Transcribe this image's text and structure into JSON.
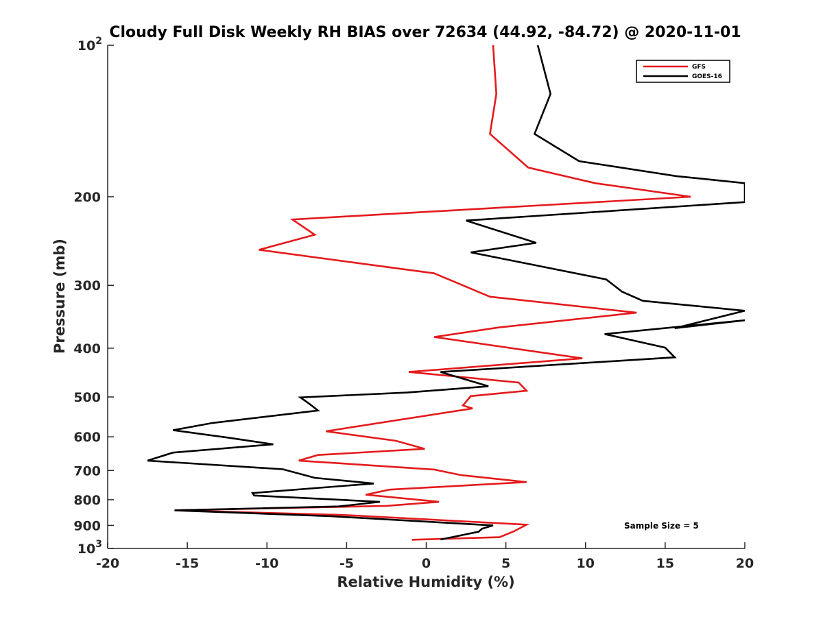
{
  "chart_data": {
    "type": "line",
    "title": "Cloudy Full Disk Weekly RH BIAS over 72634 (44.92, -84.72) @ 2020-11-01",
    "xlabel": "Relative Humidity (%)",
    "ylabel": "Pressure (mb)",
    "xlim": [
      -20,
      20
    ],
    "ylim": [
      100,
      1000
    ],
    "y_scale": "log",
    "y_reversed": true,
    "grid": false,
    "legend_position": "top-right",
    "x_ticks": [
      "-20",
      "-15",
      "-10",
      "-5",
      "0",
      "5",
      "10",
      "15",
      "20"
    ],
    "y_tick_labels": [
      {
        "value": 100,
        "base": "10",
        "exp": "2"
      },
      {
        "value": 200,
        "text": "200"
      },
      {
        "value": 300,
        "text": "300"
      },
      {
        "value": 400,
        "text": "400"
      },
      {
        "value": 500,
        "text": "500"
      },
      {
        "value": 600,
        "text": "600"
      },
      {
        "value": 700,
        "text": "700"
      },
      {
        "value": 800,
        "text": "800"
      },
      {
        "value": 900,
        "text": "900"
      },
      {
        "value": 1000,
        "base": "10",
        "exp": "3"
      }
    ],
    "series": [
      {
        "name": "GFS",
        "color": "#e41a1c",
        "points": [
          [
            4.2,
            100
          ],
          [
            4.4,
            125
          ],
          [
            4.0,
            150
          ],
          [
            6.4,
            175
          ],
          [
            10.6,
            188
          ],
          [
            16.6,
            200
          ],
          [
            -8.4,
            222
          ],
          [
            -7.0,
            238
          ],
          [
            -10.5,
            255
          ],
          [
            0.5,
            284
          ],
          [
            4.0,
            316
          ],
          [
            13.2,
            340
          ],
          [
            4.5,
            364
          ],
          [
            0.5,
            380
          ],
          [
            9.8,
            419
          ],
          [
            -1.1,
            446
          ],
          [
            5.8,
            468
          ],
          [
            6.3,
            486
          ],
          [
            2.8,
            498
          ],
          [
            2.3,
            520
          ],
          [
            2.9,
            527
          ],
          [
            -6.3,
            585
          ],
          [
            -1.9,
            611
          ],
          [
            -0.1,
            634
          ],
          [
            -6.8,
            652
          ],
          [
            -8.0,
            669
          ],
          [
            0.5,
            697
          ],
          [
            2.2,
            715
          ],
          [
            6.3,
            738
          ],
          [
            -2.3,
            764
          ],
          [
            -3.8,
            782
          ],
          [
            0.8,
            808
          ],
          [
            -2.5,
            823
          ],
          [
            -15.8,
            840
          ],
          [
            -5.2,
            858
          ],
          [
            6.3,
            897
          ],
          [
            5.5,
            925
          ],
          [
            4.6,
            950
          ],
          [
            -0.9,
            961
          ]
        ]
      },
      {
        "name": "GOES-16",
        "color": "#000000",
        "points": [
          [
            7.0,
            100
          ],
          [
            7.8,
            125
          ],
          [
            6.8,
            150
          ],
          [
            9.6,
            170
          ],
          [
            15.7,
            182
          ],
          [
            20,
            188
          ],
          [
            20,
            205
          ],
          [
            2.5,
            223
          ],
          [
            6.9,
            247
          ],
          [
            2.8,
            258
          ],
          [
            11.3,
            292
          ],
          [
            12.3,
            309
          ],
          [
            13.6,
            322
          ],
          [
            20,
            337
          ],
          [
            15.6,
            365
          ],
          [
            20,
            352
          ],
          [
            11.2,
            375
          ],
          [
            15.0,
            399
          ],
          [
            15.6,
            417
          ],
          [
            0.9,
            446
          ],
          [
            3.9,
            476
          ],
          [
            -1.2,
            490
          ],
          [
            -7.9,
            501
          ],
          [
            -7.3,
            517
          ],
          [
            -6.8,
            532
          ],
          [
            -13.4,
            563
          ],
          [
            -15.9,
            582
          ],
          [
            -12.5,
            602
          ],
          [
            -9.6,
            621
          ],
          [
            -15.9,
            645
          ],
          [
            -17.5,
            669
          ],
          [
            -9.0,
            696
          ],
          [
            -7.0,
            724
          ],
          [
            -3.3,
            743
          ],
          [
            -10.9,
            776
          ],
          [
            -10.8,
            785
          ],
          [
            -2.9,
            808
          ],
          [
            -5.5,
            825
          ],
          [
            -15.8,
            840
          ],
          [
            -6.0,
            863
          ],
          [
            4.2,
            900
          ],
          [
            3.5,
            914
          ],
          [
            3.3,
            926
          ],
          [
            0.9,
            960
          ]
        ]
      }
    ],
    "annotation": "Sample Size = 5"
  }
}
